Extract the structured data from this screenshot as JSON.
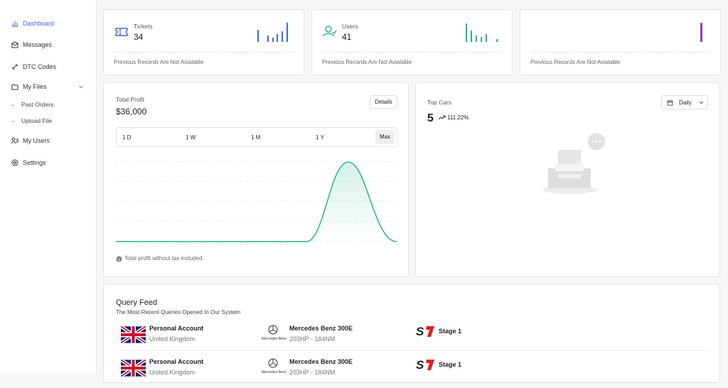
{
  "sidebar": {
    "items": [
      {
        "label": "Dashboard"
      },
      {
        "label": "Messages"
      },
      {
        "label": "DTC Codes"
      },
      {
        "label": "My Files",
        "children": [
          "Past Orders",
          "Upload File"
        ]
      },
      {
        "label": "My Users"
      },
      {
        "label": "Settings"
      }
    ]
  },
  "stats": [
    {
      "label": "Tickets",
      "value": "34",
      "footer": "Previous Records Are Not Avialable"
    },
    {
      "label": "Users",
      "value": "41",
      "footer": "Previous Records Are Not Avialable"
    },
    {
      "footer": "Previous Records Are Not Avialable"
    }
  ],
  "profit": {
    "title": "Total Profit",
    "value": "$36,000",
    "button": "Details",
    "tabs": [
      "1 D",
      "1 W",
      "1 M",
      "1 Y",
      "Max"
    ],
    "note": "Total profit without tax included."
  },
  "top_cars": {
    "title": "Top Cars",
    "value": "5",
    "change": "111.22%",
    "dropdown": "Daily"
  },
  "query_feed": {
    "title": "Query Feed",
    "subtitle": "The Most Recent Queries Opened In Our System",
    "rows": [
      {
        "account": "Personal Account",
        "country": "United Kingdom",
        "brand": "Mercedes-Benz",
        "car": "Mercedes Benz 300E",
        "specs": "203HP - 184NM",
        "stage": "Stage 1"
      },
      {
        "account": "Personal Account",
        "country": "United Kingdom",
        "brand": "Mercedes-Benz",
        "car": "Mercedes Benz 300E",
        "specs": "203HP - 184NM",
        "stage": "Stage 1"
      }
    ]
  }
}
